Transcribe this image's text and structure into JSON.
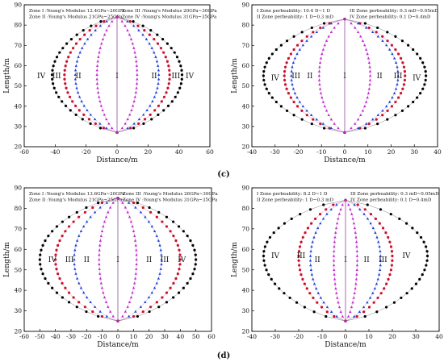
{
  "figure": {
    "panel_tags": [
      "(c)",
      "(d)"
    ]
  },
  "chart_data": [
    {
      "id": "top-left",
      "type": "scatter",
      "title": "",
      "xlabel": "Distance/m",
      "ylabel": "Length/m",
      "xlim": [
        -60,
        60
      ],
      "ylim": [
        20,
        90
      ],
      "xticks": [
        -60,
        -40,
        -20,
        0,
        20,
        40,
        60
      ],
      "yticks": [
        20,
        30,
        40,
        50,
        60,
        70,
        80,
        90
      ],
      "grid": false,
      "y_top": 84,
      "y_bottom": 27,
      "legend": [
        [
          "Zone I :Young's Modulus 12.4GPa~20GPa",
          "Zone III :Young's Modulus 20GPa~30GPa"
        ],
        [
          "Zone II :Young's Modulus 21GPa~25GPa",
          "Zone IV :Young's Modulus 31GPa~35GPa"
        ]
      ],
      "legend_placement": "top",
      "zone_labels": [
        {
          "text": "IV",
          "x": -49,
          "y": 55
        },
        {
          "text": "III",
          "x": -39,
          "y": 55
        },
        {
          "text": "II",
          "x": -25,
          "y": 55
        },
        {
          "text": "I",
          "x": 0,
          "y": 55
        },
        {
          "text": "II",
          "x": 24,
          "y": 55
        },
        {
          "text": "III",
          "x": 38,
          "y": 55
        },
        {
          "text": "IV",
          "x": 47,
          "y": 55
        }
      ],
      "series": [
        {
          "color": "#000000",
          "marker": "circle",
          "width": 42,
          "y_at_max_width": 55
        },
        {
          "color": "#c8102e",
          "marker": "circle",
          "width": 34,
          "y_at_max_width": 55
        },
        {
          "color": "#1f3fd8",
          "marker": "triangle",
          "width": 27,
          "y_at_max_width": 55
        },
        {
          "color": "#c02bc8",
          "marker": "triangle",
          "width": 13,
          "y_at_max_width": 55
        }
      ]
    },
    {
      "id": "top-right",
      "type": "scatter",
      "title": "",
      "xlabel": "Distance/m",
      "ylabel": "Length/m",
      "xlim": [
        -40,
        40
      ],
      "ylim": [
        20,
        90
      ],
      "xticks": [
        -40,
        -30,
        -20,
        -10,
        0,
        10,
        20,
        30,
        40
      ],
      "yticks": [
        20,
        30,
        40,
        50,
        60,
        70,
        80,
        90
      ],
      "grid": false,
      "y_top": 83,
      "y_bottom": 27,
      "legend": [
        [
          "I Zone perbeability: 10.4 D~1 D",
          "III Zone perbeability: 0.3 mD~0.05mD"
        ],
        [
          "II Zone perbeability: 1 D~0.3 mD",
          "IV Zone perbeability: 0.1 D~0.4mD"
        ]
      ],
      "legend_placement": "top",
      "zone_labels": [
        {
          "text": "IV",
          "x": -30,
          "y": 54
        },
        {
          "text": "III",
          "x": -21,
          "y": 55
        },
        {
          "text": "II",
          "x": -15,
          "y": 55
        },
        {
          "text": "I",
          "x": 0,
          "y": 55
        },
        {
          "text": "II",
          "x": 15,
          "y": 55
        },
        {
          "text": "III",
          "x": 23,
          "y": 55
        },
        {
          "text": "IV",
          "x": 31,
          "y": 54
        }
      ],
      "series": [
        {
          "color": "#000000",
          "marker": "circle",
          "width": 35,
          "y_at_max_width": 55
        },
        {
          "color": "#c8102e",
          "marker": "circle",
          "width": 26,
          "y_at_max_width": 55
        },
        {
          "color": "#1f3fd8",
          "marker": "triangle",
          "width": 23,
          "y_at_max_width": 55
        },
        {
          "color": "#c02bc8",
          "marker": "triangle",
          "width": 11,
          "y_at_max_width": 55
        }
      ]
    },
    {
      "id": "bottom-left",
      "type": "scatter",
      "title": "",
      "xlabel": "Distance/m",
      "ylabel": "Length/m",
      "xlim": [
        -60,
        60
      ],
      "ylim": [
        20,
        90
      ],
      "xticks": [
        -60,
        -50,
        -40,
        -30,
        -20,
        -10,
        0,
        10,
        20,
        30,
        40,
        50,
        60
      ],
      "yticks": [
        20,
        30,
        40,
        50,
        60,
        70,
        80,
        90
      ],
      "grid": false,
      "y_top": 85,
      "y_bottom": 25,
      "legend": [
        [
          "Zone I :Young's Modulus 13.6GPa~20GPa",
          "Zone III :Young's Modulus 26GPa~30GPa"
        ],
        [
          "Zone II :Young's Modulus 21GPa~25GPa",
          "Zone IV :Young's Modulus 31GPa~35GPa"
        ]
      ],
      "legend_placement": "top",
      "zone_labels": [
        {
          "text": "IV",
          "x": -42,
          "y": 55
        },
        {
          "text": "III",
          "x": -31,
          "y": 55
        },
        {
          "text": "II",
          "x": -20,
          "y": 55
        },
        {
          "text": "I",
          "x": 0,
          "y": 55
        },
        {
          "text": "II",
          "x": 20,
          "y": 55
        },
        {
          "text": "III",
          "x": 30,
          "y": 55
        },
        {
          "text": "IV",
          "x": 41,
          "y": 55
        }
      ],
      "series": [
        {
          "color": "#000000",
          "marker": "circle",
          "width": 50,
          "y_at_max_width": 55
        },
        {
          "color": "#c8102e",
          "marker": "circle",
          "width": 40,
          "y_at_max_width": 55
        },
        {
          "color": "#1f3fd8",
          "marker": "triangle",
          "width": 28,
          "y_at_max_width": 55
        },
        {
          "color": "#c02bc8",
          "marker": "triangle",
          "width": 12,
          "y_at_max_width": 55
        }
      ]
    },
    {
      "id": "bottom-right",
      "type": "scatter",
      "title": "",
      "xlabel": "Distance/m",
      "ylabel": "Length/m",
      "xlim": [
        -40,
        40
      ],
      "ylim": [
        20,
        90
      ],
      "xticks": [
        -40,
        -30,
        -20,
        -10,
        0,
        10,
        20,
        30,
        40
      ],
      "yticks": [
        20,
        30,
        40,
        50,
        60,
        70,
        80,
        90
      ],
      "grid": false,
      "y_top": 84,
      "y_bottom": 25,
      "legend": [
        [
          "I Zone perbeability: 8.2 D~1 D",
          "III Zone perbeability: 0.3 mD~0.05mD"
        ],
        [
          "II Zone perbeability: 1 D~0.3 mD",
          "IV Zone perbeability: 0.1 D~0.4mD"
        ]
      ],
      "legend_placement": "top",
      "zone_labels": [
        {
          "text": "IV",
          "x": -30,
          "y": 57
        },
        {
          "text": "III",
          "x": -19,
          "y": 57
        },
        {
          "text": "II",
          "x": -12,
          "y": 55
        },
        {
          "text": "I",
          "x": 0,
          "y": 55
        },
        {
          "text": "II",
          "x": 9,
          "y": 55
        },
        {
          "text": "III",
          "x": 16,
          "y": 55
        },
        {
          "text": "IV",
          "x": 26,
          "y": 57
        }
      ],
      "series": [
        {
          "color": "#000000",
          "marker": "circle",
          "width": 35,
          "y_at_max_width": 57
        },
        {
          "color": "#c8102e",
          "marker": "circle",
          "width": 20,
          "y_at_max_width": 56
        },
        {
          "color": "#1f3fd8",
          "marker": "triangle",
          "width": 15,
          "y_at_max_width": 55
        },
        {
          "color": "#c02bc8",
          "marker": "triangle",
          "width": 5,
          "y_at_max_width": 55
        }
      ]
    }
  ]
}
